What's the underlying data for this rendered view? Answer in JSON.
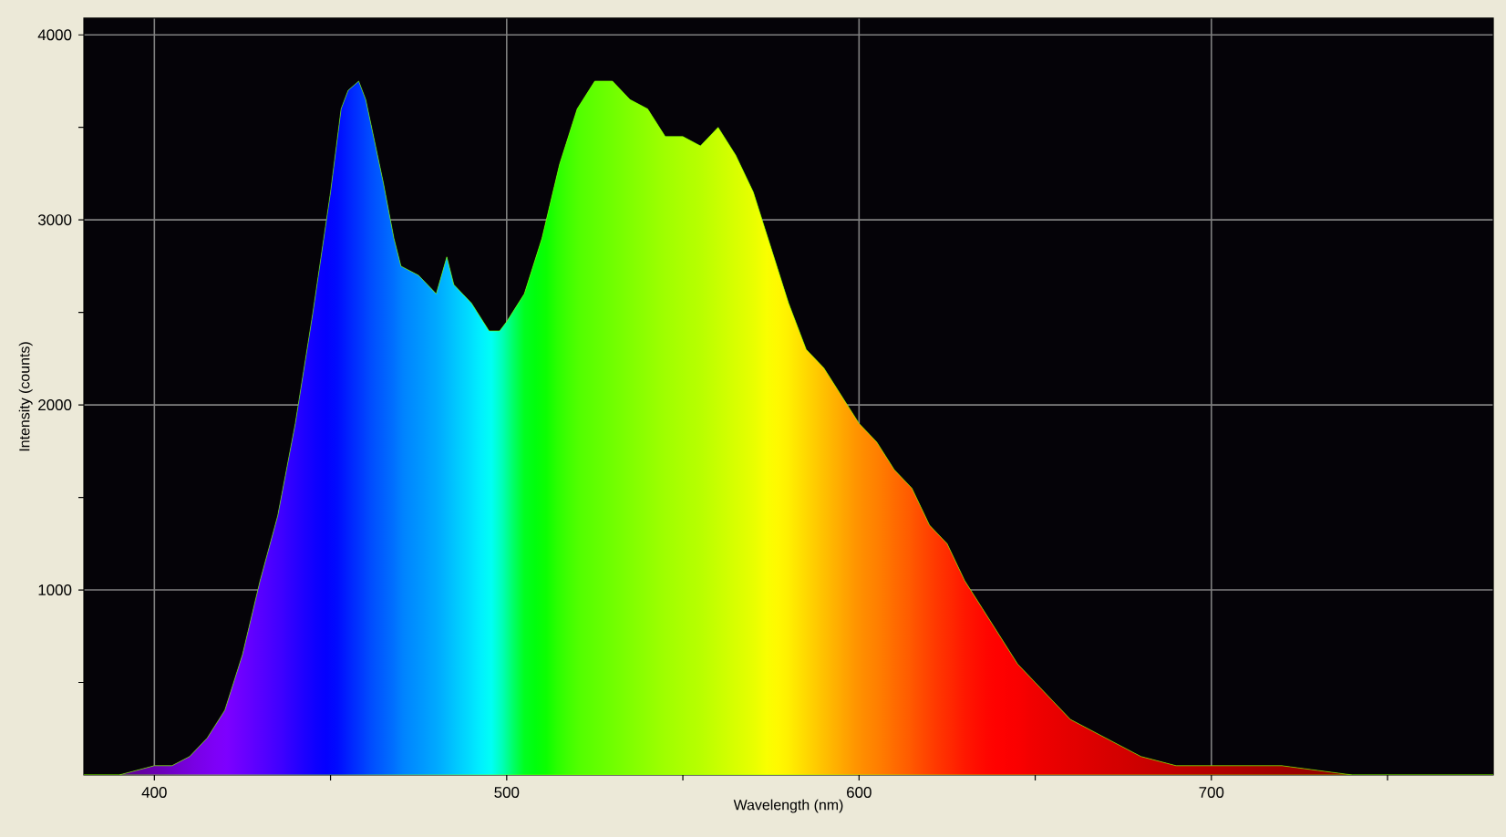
{
  "chart_data": {
    "type": "area",
    "xlabel": "Wavelength (nm)",
    "ylabel": "Intensity (counts)",
    "xlim": [
      380,
      780
    ],
    "ylim": [
      0,
      4090
    ],
    "xticks": [
      400,
      500,
      600,
      700,
      {
        "value": 450,
        "label": null
      },
      {
        "value": 550,
        "label": null
      },
      {
        "value": 650,
        "label": null
      },
      {
        "value": 750,
        "label": null
      }
    ],
    "yticks": [
      1000,
      2000,
      3000,
      4000,
      {
        "value": 500,
        "label": null
      },
      {
        "value": 1500,
        "label": null
      },
      {
        "value": 2500,
        "label": null
      },
      {
        "value": 3500,
        "label": null
      }
    ],
    "grid": true,
    "x": [
      380,
      390,
      400,
      405,
      410,
      415,
      420,
      425,
      430,
      435,
      440,
      445,
      450,
      453,
      455,
      458,
      460,
      465,
      468,
      470,
      475,
      480,
      483,
      485,
      490,
      495,
      498,
      500,
      505,
      510,
      515,
      520,
      525,
      530,
      535,
      540,
      545,
      550,
      555,
      560,
      565,
      570,
      575,
      580,
      585,
      590,
      595,
      600,
      605,
      610,
      615,
      620,
      625,
      630,
      635,
      640,
      645,
      650,
      655,
      660,
      665,
      670,
      680,
      690,
      700,
      720,
      740,
      760,
      780
    ],
    "values": [
      0,
      0,
      50,
      50,
      100,
      200,
      350,
      650,
      1050,
      1400,
      1900,
      2500,
      3150,
      3600,
      3700,
      3750,
      3650,
      3200,
      2900,
      2750,
      2700,
      2600,
      2800,
      2650,
      2550,
      2400,
      2400,
      2450,
      2600,
      2900,
      3300,
      3600,
      3750,
      3750,
      3650,
      3600,
      3450,
      3450,
      3400,
      3500,
      3350,
      3150,
      2850,
      2550,
      2300,
      2200,
      2050,
      1900,
      1800,
      1650,
      1550,
      1350,
      1250,
      1050,
      900,
      750,
      600,
      500,
      400,
      300,
      250,
      200,
      100,
      50,
      50,
      50,
      0,
      0,
      0
    ],
    "colors": [
      "#4a0070",
      "#5a0090",
      "#6a00b0",
      "#7000c8",
      "#7800e0",
      "#7c00f0",
      "#8000ff",
      "#6c00ff",
      "#5800ff",
      "#4400ff",
      "#2a00ff",
      "#1000ff",
      "#0000ff",
      "#0010ff",
      "#0020ff",
      "#0034ff",
      "#0044ff",
      "#0060ff",
      "#0070ff",
      "#0080ff",
      "#0094ff",
      "#00a8ff",
      "#00b8ff",
      "#00c4ff",
      "#00e0ff",
      "#00ffff",
      "#00ffd0",
      "#00ff90",
      "#00ff20",
      "#00ff00",
      "#30ff00",
      "#50ff00",
      "#60ff00",
      "#70ff00",
      "#80ff00",
      "#90ff00",
      "#a0ff00",
      "#acff00",
      "#b8ff00",
      "#c8ff00",
      "#d8ff00",
      "#e8ff00",
      "#ffff00",
      "#fff000",
      "#ffd800",
      "#ffc000",
      "#ffa800",
      "#ff9000",
      "#ff8000",
      "#ff6c00",
      "#ff5800",
      "#ff4000",
      "#ff2c00",
      "#ff1800",
      "#ff0800",
      "#ff0000",
      "#fa0000",
      "#f00000",
      "#ea0000",
      "#e40000",
      "#de0000",
      "#d80000",
      "#cc0000",
      "#c00000",
      "#b40000",
      "#a00000",
      "#900000",
      "#800000",
      "#700000"
    ]
  }
}
